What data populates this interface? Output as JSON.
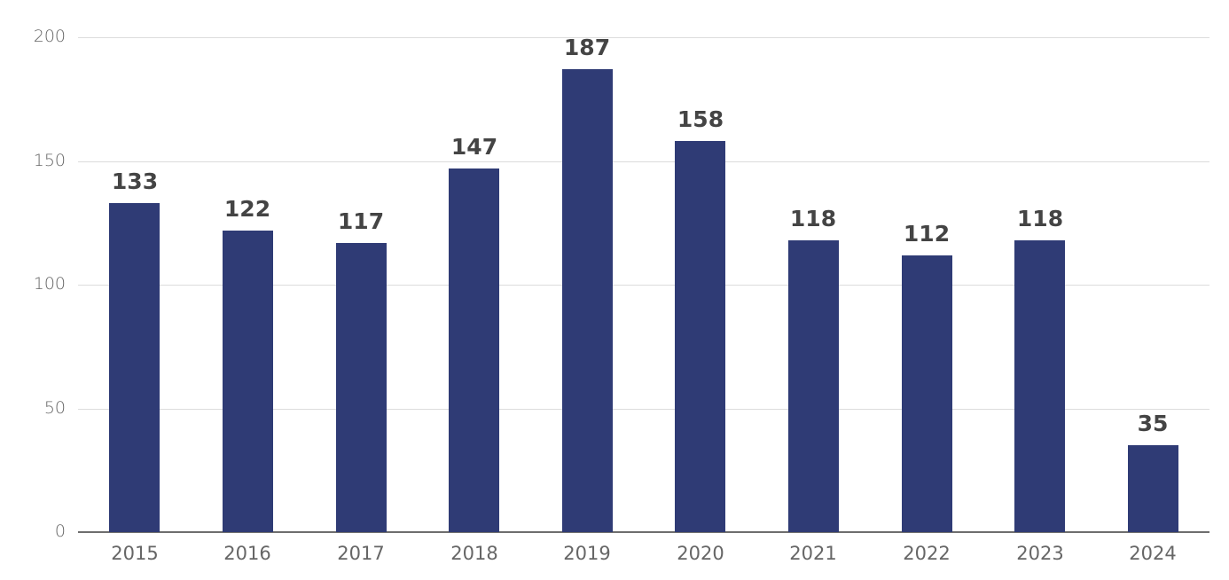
{
  "chart_data": {
    "type": "bar",
    "title": "",
    "xlabel": "",
    "ylabel": "",
    "categories": [
      "2015",
      "2016",
      "2017",
      "2018",
      "2019",
      "2020",
      "2021",
      "2022",
      "2023",
      "2024"
    ],
    "values": [
      133,
      122,
      117,
      147,
      187,
      158,
      118,
      112,
      118,
      35
    ],
    "ylim": [
      0,
      200
    ],
    "yticks": [
      0,
      50,
      100,
      150,
      200
    ],
    "grid": true,
    "legend": null,
    "data_labels": true,
    "bar_color": "#2f3b75"
  }
}
